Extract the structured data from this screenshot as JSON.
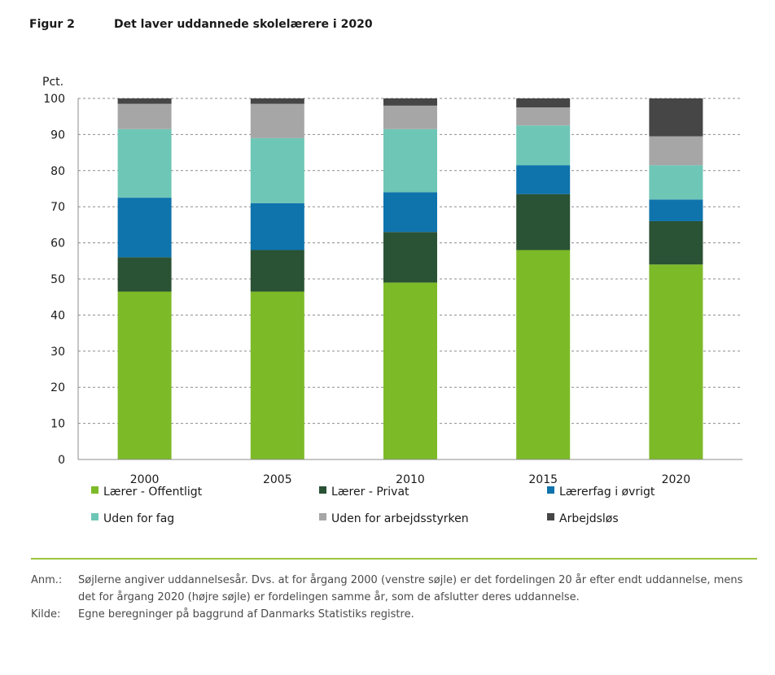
{
  "header": {
    "figure_number": "Figur 2",
    "title": "Det laver uddannede skolelærere i 2020"
  },
  "chart_data": {
    "type": "bar",
    "stacked": true,
    "title": "Det laver uddannede skolelærere i 2020",
    "ylabel": "Pct.",
    "xlabel": "",
    "ylim": [
      0,
      100
    ],
    "yticks": [
      0,
      10,
      20,
      30,
      40,
      50,
      60,
      70,
      80,
      90,
      100
    ],
    "grid": true,
    "legend_position": "bottom",
    "categories": [
      "2000",
      "2005",
      "2010",
      "2015",
      "2020"
    ],
    "series": [
      {
        "name": "Lærer - Offentligt",
        "color": "#7dba28",
        "values": [
          46.5,
          46.5,
          49,
          58,
          54
        ]
      },
      {
        "name": "Lærer - Privat",
        "color": "#2a5234",
        "values": [
          9.5,
          11.5,
          14,
          15.5,
          12
        ]
      },
      {
        "name": "Lærerfag i øvrigt",
        "color": "#0f73ac",
        "values": [
          16.5,
          13,
          11,
          8,
          6
        ]
      },
      {
        "name": "Uden for fag",
        "color": "#6ec6b6",
        "values": [
          19,
          18,
          17.5,
          11,
          9.5
        ]
      },
      {
        "name": "Uden for arbejdsstyrken",
        "color": "#a6a6a6",
        "values": [
          7,
          9.5,
          6.5,
          5,
          8
        ]
      },
      {
        "name": "Arbejdsløs",
        "color": "#464646",
        "values": [
          1.5,
          1.5,
          2,
          2.5,
          10.5
        ]
      }
    ]
  },
  "notes": {
    "anm_label": "Anm.:",
    "anm_text": "Søjlerne angiver uddannelsesår. Dvs. at for årgang 2000 (venstre søjle) er det fordelingen 20 år efter endt uddannelse, mens det for årgang 2020 (højre søjle) er fordelingen samme år, som de afslutter deres uddannelse.",
    "kilde_label": "Kilde:",
    "kilde_text": "Egne beregninger på baggrund af Danmarks Statistiks registre."
  }
}
